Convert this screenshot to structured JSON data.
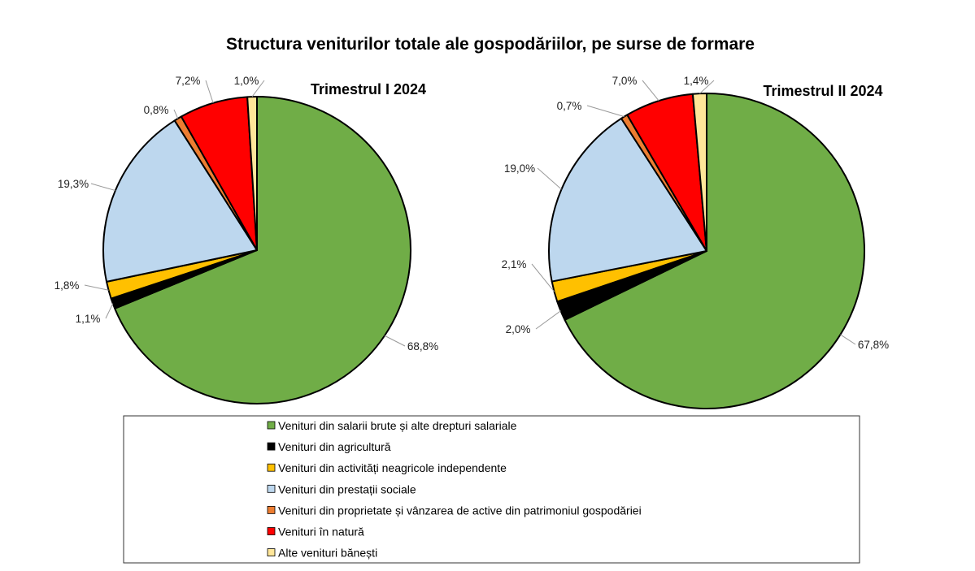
{
  "chart_data": [
    {
      "type": "pie",
      "title": "Structura veniturilor totale ale gospodăriilor, pe surse de formare",
      "subtitle": "Trimestrul  I 2024",
      "categories": [
        "Venituri din salarii brute și alte drepturi salariale",
        "Venituri din agricultură",
        "Venituri din activități neagricole independente",
        "Venituri din prestații sociale",
        "Venituri din proprietate și vânzarea de active din patrimoniul gospodăriei",
        "Venituri în natură",
        "Alte venituri bănești"
      ],
      "values": [
        68.8,
        1.1,
        1.8,
        19.3,
        0.8,
        7.2,
        1.0
      ],
      "labels": [
        "68,8%",
        "1,1%",
        "1,8%",
        "19,3%",
        "0,8%",
        "7,2%",
        "1,0%"
      ]
    },
    {
      "type": "pie",
      "subtitle": "Trimestrul  II 2024",
      "categories": [
        "Venituri din salarii brute și alte drepturi salariale",
        "Venituri din agricultură",
        "Venituri din activități neagricole independente",
        "Venituri din prestații sociale",
        "Venituri din proprietate și vânzarea de active din patrimoniul gospodăriei",
        "Venituri în natură",
        "Alte venituri bănești"
      ],
      "values": [
        67.8,
        2.0,
        2.1,
        19.0,
        0.7,
        7.0,
        1.4
      ],
      "labels": [
        "67,8%",
        "2,0%",
        "2,1%",
        "19,0%",
        "0,7%",
        "7,0%",
        "1,4%"
      ]
    }
  ],
  "legend": {
    "placement": "bottom",
    "items": [
      "Venituri din salarii brute și alte drepturi salariale",
      "Venituri din agricultură",
      "Venituri din activități neagricole independente",
      "Venituri din prestații sociale",
      "Venituri din proprietate și vânzarea de active din patrimoniul gospodăriei",
      "Venituri în natură",
      "Alte venituri bănești"
    ]
  },
  "colors": [
    "#70AD47",
    "#000000",
    "#FFC000",
    "#BDD7EE",
    "#ED7D31",
    "#FF0000",
    "#FFE699"
  ]
}
